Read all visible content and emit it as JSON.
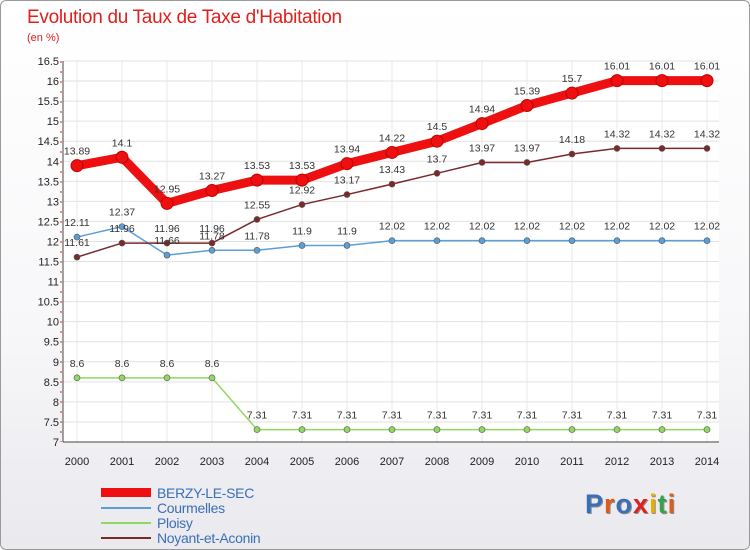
{
  "title": "Evolution du Taux de Taxe d'Habitation",
  "subtitle": "(en %)",
  "logo": {
    "text": "Proxiti",
    "colors": [
      "#3a6fb6",
      "#e05a1c",
      "#3a6fb6",
      "#e0201c",
      "#e8b000",
      "#3aa04a",
      "#e05a1c"
    ]
  },
  "chart_data": {
    "type": "line",
    "x": [
      "2000",
      "2001",
      "2002",
      "2003",
      "2004",
      "2005",
      "2006",
      "2007",
      "2008",
      "2009",
      "2010",
      "2011",
      "2012",
      "2013",
      "2014"
    ],
    "ylim": [
      7,
      16.5
    ],
    "yticks": [
      "7",
      "7.5",
      "8",
      "8.5",
      "9",
      "9.5",
      "10",
      "10.5",
      "11",
      "11.5",
      "12",
      "12.5",
      "13",
      "13.5",
      "14",
      "14.5",
      "15",
      "15.5",
      "16",
      "16.5"
    ],
    "legend_position": "bottom-left",
    "series": [
      {
        "name": "BERZY-LE-SEC",
        "color": "#ee1010",
        "values": [
          13.89,
          14.1,
          12.95,
          13.27,
          13.53,
          13.53,
          13.94,
          14.22,
          14.5,
          14.94,
          15.39,
          15.7,
          16.01,
          16.01,
          16.01
        ],
        "labels": [
          "13.89",
          "14.1",
          "12.95",
          "13.27",
          "13.53",
          "13.53",
          "13.94",
          "14.22",
          "14.5",
          "14.94",
          "15.39",
          "15.7",
          "16.01",
          "16.01",
          "16.01"
        ]
      },
      {
        "name": "Courmelles",
        "color": "#5b9fd8",
        "values": [
          12.11,
          12.37,
          11.66,
          11.78,
          11.78,
          11.9,
          11.9,
          12.02,
          12.02,
          12.02,
          12.02,
          12.02,
          12.02,
          12.02,
          12.02
        ],
        "labels": [
          "12.11",
          "12.37",
          "11.66",
          "11.78",
          "11.78",
          "11.9",
          "11.9",
          "12.02",
          "12.02",
          "12.02",
          "12.02",
          "12.02",
          "12.02",
          "12.02",
          "12.02"
        ]
      },
      {
        "name": "Ploisy",
        "color": "#90d860",
        "values": [
          8.6,
          8.6,
          8.6,
          8.6,
          7.31,
          7.31,
          7.31,
          7.31,
          7.31,
          7.31,
          7.31,
          7.31,
          7.31,
          7.31,
          7.31
        ],
        "labels": [
          "8.6",
          "8.6",
          "8.6",
          "8.6",
          "7.31",
          "7.31",
          "7.31",
          "7.31",
          "7.31",
          "7.31",
          "7.31",
          "7.31",
          "7.31",
          "7.31",
          "7.31"
        ]
      },
      {
        "name": "Noyant-et-Aconin",
        "color": "#7a2a2a",
        "values": [
          11.61,
          11.96,
          11.96,
          11.96,
          12.55,
          12.92,
          13.17,
          13.43,
          13.7,
          13.97,
          13.97,
          14.18,
          14.32,
          14.32,
          14.32
        ],
        "labels": [
          "11.61",
          "11.96",
          "11.96",
          "11.96",
          "12.55",
          "12.92",
          "13.17",
          "13.43",
          "13.7",
          "13.97",
          "13.97",
          "14.18",
          "14.32",
          "14.32",
          "14.32"
        ]
      }
    ]
  }
}
